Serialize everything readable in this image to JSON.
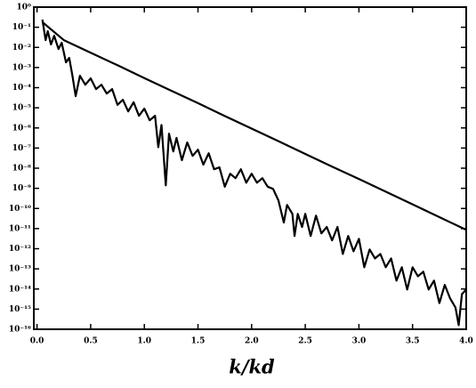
{
  "chart_data": {
    "type": "line",
    "xlabel": "k/kd",
    "xlim": [
      -0.03,
      4.0
    ],
    "xticks": [
      {
        "value": 0,
        "label": "0.0"
      },
      0.5,
      {
        "value": 1,
        "label": "1.0"
      },
      1.5,
      {
        "value": 2,
        "label": "2.0"
      },
      2.5,
      {
        "value": 3,
        "label": "3.0"
      },
      3.5,
      {
        "value": 4,
        "label": "4.0"
      }
    ],
    "ylim": [
      1e-16,
      1
    ],
    "log_y": true,
    "yticks": [
      {
        "value": 1,
        "label": "10⁰"
      },
      {
        "value": 0.1,
        "label": "10⁻¹"
      },
      {
        "value": 0.01,
        "label": "10⁻²"
      },
      {
        "value": 0.001,
        "label": "10⁻³"
      },
      {
        "value": 0.0001,
        "label": "10⁻⁴"
      },
      {
        "value": 1e-05,
        "label": "10⁻⁵"
      },
      {
        "value": 1e-06,
        "label": "10⁻⁶"
      },
      {
        "value": 1e-07,
        "label": "10⁻⁷"
      },
      {
        "value": 1e-08,
        "label": "10⁻⁸"
      },
      {
        "value": 1e-09,
        "label": "10⁻⁹"
      },
      {
        "value": 1e-10,
        "label": "10⁻¹⁰"
      },
      {
        "value": 1e-11,
        "label": "10⁻¹¹"
      },
      {
        "value": 1e-12,
        "label": "10⁻¹²"
      },
      {
        "value": 1e-13,
        "label": "10⁻¹³"
      },
      {
        "value": 1e-14,
        "label": "10⁻¹⁴"
      },
      {
        "value": 1e-15,
        "label": "10⁻¹⁵"
      },
      {
        "value": 1e-16,
        "label": "10⁻¹⁶"
      }
    ],
    "series": [
      {
        "color": "#000000",
        "x": [
          0.05,
          0.25,
          0.5,
          0.75,
          1.0,
          1.25,
          1.5,
          1.75,
          2.0,
          2.25,
          2.5,
          2.75,
          3.0,
          3.25,
          3.5,
          3.75,
          4.0
        ],
        "values": [
          0.18,
          0.023,
          0.0054,
          0.0013,
          0.0003,
          7.1e-05,
          1.7e-05,
          3.9e-06,
          9.3e-07,
          2.2e-07,
          5.1e-08,
          1.2e-08,
          2.9e-09,
          6.8e-10,
          1.6e-10,
          3.7e-11,
          8.7e-12
        ]
      },
      {
        "color": "#000000",
        "x": [
          0.05,
          0.08,
          0.1,
          0.13,
          0.16,
          0.2,
          0.23,
          0.27,
          0.3,
          0.33,
          0.36,
          0.4,
          0.45,
          0.5,
          0.55,
          0.6,
          0.65,
          0.7,
          0.75,
          0.8,
          0.85,
          0.9,
          0.95,
          1.0,
          1.05,
          1.1,
          1.13,
          1.16,
          1.2,
          1.23,
          1.27,
          1.3,
          1.35,
          1.4,
          1.45,
          1.5,
          1.55,
          1.6,
          1.65,
          1.7,
          1.75,
          1.8,
          1.85,
          1.9,
          1.95,
          2.0,
          2.05,
          2.1,
          2.15,
          2.2,
          2.25,
          2.3,
          2.33,
          2.38,
          2.4,
          2.43,
          2.47,
          2.5,
          2.55,
          2.6,
          2.65,
          2.7,
          2.75,
          2.8,
          2.85,
          2.9,
          2.95,
          3.0,
          3.05,
          3.1,
          3.15,
          3.2,
          3.25,
          3.3,
          3.35,
          3.4,
          3.45,
          3.5,
          3.55,
          3.6,
          3.65,
          3.7,
          3.75,
          3.8,
          3.85,
          3.9,
          3.93,
          3.96,
          4.0
        ],
        "values": [
          0.24,
          0.023,
          0.064,
          0.014,
          0.038,
          0.0083,
          0.017,
          0.0018,
          0.003,
          0.00039,
          3.8e-05,
          0.00039,
          0.00014,
          0.00029,
          8.5e-05,
          0.00014,
          5.1e-05,
          8.5e-05,
          1.4e-05,
          2.5e-05,
          6.6e-06,
          1.9e-05,
          4e-06,
          9.1e-06,
          2.4e-06,
          4e-06,
          1.1e-07,
          1.4e-06,
          1.4e-09,
          5.2e-07,
          6.8e-08,
          3.2e-07,
          2.5e-08,
          1.9e-07,
          4.1e-08,
          8.3e-08,
          1.5e-08,
          5.5e-08,
          8.9e-09,
          1.1e-08,
          1.2e-09,
          5.3e-09,
          3.2e-09,
          8.9e-09,
          1.9e-09,
          5.3e-09,
          1.9e-09,
          3.2e-09,
          1.2e-09,
          9.4e-10,
          2.5e-10,
          2e-11,
          1.5e-10,
          5.4e-11,
          4.3e-12,
          5.4e-11,
          1.2e-11,
          5.4e-11,
          4.3e-12,
          4.4e-11,
          5.8e-12,
          1.2e-11,
          2.6e-12,
          1.2e-11,
          5.5e-13,
          4.3e-12,
          7.5e-13,
          3.1e-12,
          1.2e-13,
          9.2e-13,
          3.3e-13,
          5.5e-13,
          1.2e-13,
          3.3e-13,
          2.6e-14,
          1.2e-13,
          9.4e-15,
          1.2e-13,
          4.3e-14,
          7.2e-14,
          9.4e-15,
          2.6e-14,
          2e-15,
          1.6e-14,
          3.4e-15,
          1.2e-15,
          1.6e-16,
          5.6e-15,
          9.4e-15
        ]
      }
    ]
  }
}
